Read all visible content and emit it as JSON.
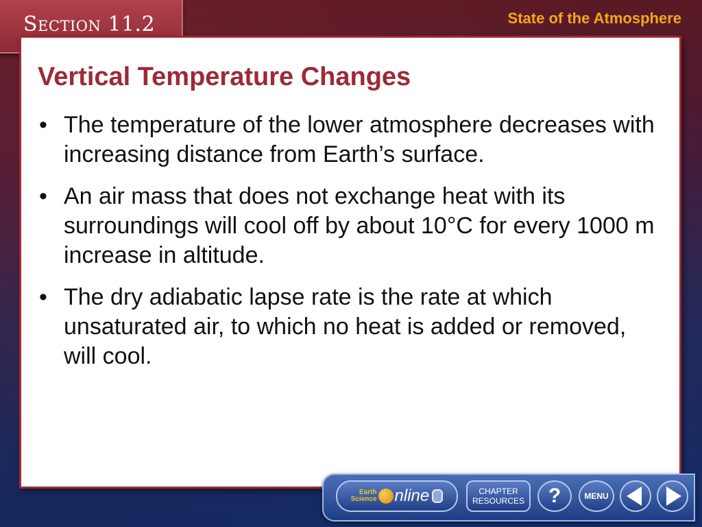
{
  "header": {
    "section_label": "Section 11.2",
    "title": "State of the Atmosphere"
  },
  "slide": {
    "title": "Vertical Temperature Changes",
    "bullets": [
      "The temperature of the lower atmosphere decreases with increasing distance from Earth’s surface.",
      "An air mass that does not exchange heat with its surroundings will cool off by about 10°C for every 1000 m increase in altitude.",
      "The dry adiabatic lapse rate is the rate at which unsaturated air, to which no heat is added or removed, will cool."
    ]
  },
  "nav": {
    "earth_line1": "Earth",
    "earth_line2": "Science",
    "online": "nline",
    "resources_line1": "CHAPTER",
    "resources_line2": "RESOURCES",
    "help": "?",
    "menu": "MENU"
  },
  "colors": {
    "accent_red": "#9c2a36",
    "header_orange": "#f4a61a",
    "nav_blue": "#1f3f85"
  }
}
